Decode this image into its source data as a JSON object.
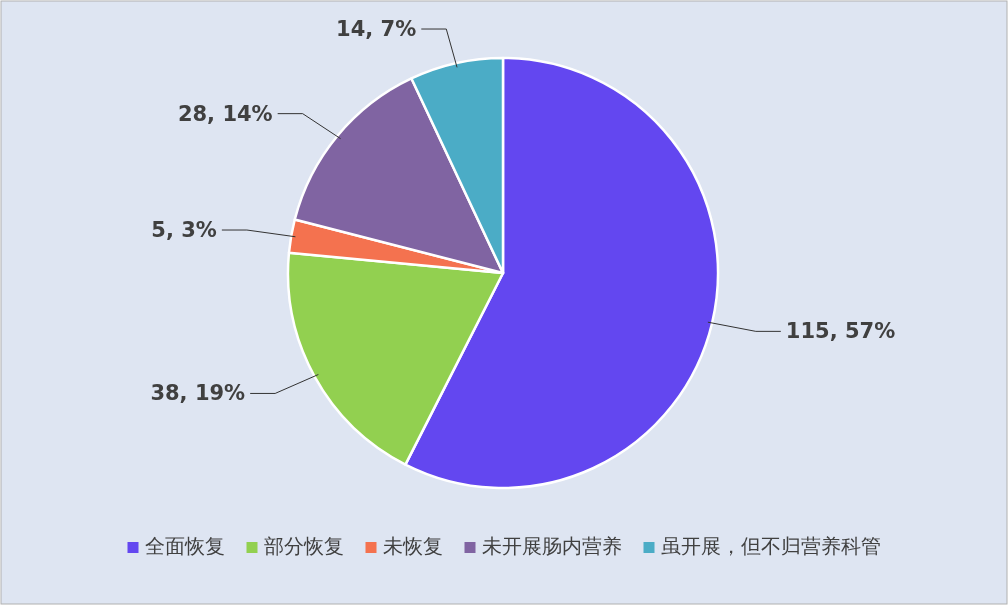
{
  "chart_data": {
    "type": "pie",
    "categories": [
      "全面恢复",
      "部分恢复",
      "未恢复",
      "未开展肠内营养",
      "虽开展，但不归营养科管"
    ],
    "values": [
      115,
      38,
      5,
      28,
      14
    ],
    "colors": [
      "#6347f0",
      "#92d050",
      "#f4724f",
      "#8064a2",
      "#4bacc6"
    ],
    "value_labels": [
      "115, 57%",
      "38, 19%",
      "5, 3%",
      "28, 14%",
      "14, 7%"
    ],
    "legend": "bottom"
  }
}
